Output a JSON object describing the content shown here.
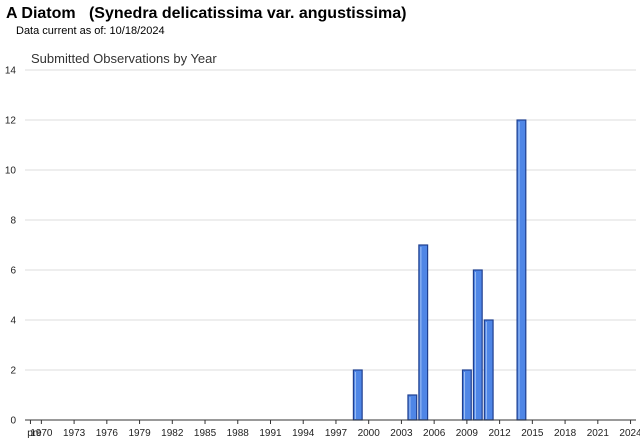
{
  "header": {
    "title": "A Diatom   (Synedra delicatissima var. angustissima)",
    "data_date": "Data current as of: 10/18/2024"
  },
  "colors": {
    "bar_fill": "#4f86e6",
    "bar_stroke": "#1f3f8f",
    "grid": "#dddddd",
    "axis": "#333333"
  },
  "chart_data": {
    "type": "bar",
    "title": "Submitted Observations by Year",
    "xlabel": "",
    "ylabel": "",
    "ylim": [
      0,
      14
    ],
    "yticks": [
      0,
      2,
      4,
      6,
      8,
      10,
      12,
      14
    ],
    "grid": true,
    "legend": "none",
    "x_tick_labels": [
      "pre",
      "1970",
      "1973",
      "1976",
      "1979",
      "1982",
      "1985",
      "1988",
      "1991",
      "1994",
      "1997",
      "2000",
      "2003",
      "2006",
      "2009",
      "2012",
      "2015",
      "2018",
      "2021",
      "2024"
    ],
    "categories": [
      "pre",
      "1970",
      "1971",
      "1972",
      "1973",
      "1974",
      "1975",
      "1976",
      "1977",
      "1978",
      "1979",
      "1980",
      "1981",
      "1982",
      "1983",
      "1984",
      "1985",
      "1986",
      "1987",
      "1988",
      "1989",
      "1990",
      "1991",
      "1992",
      "1993",
      "1994",
      "1995",
      "1996",
      "1997",
      "1998",
      "1999",
      "2000",
      "2001",
      "2002",
      "2003",
      "2004",
      "2005",
      "2006",
      "2007",
      "2008",
      "2009",
      "2010",
      "2011",
      "2012",
      "2013",
      "2014",
      "2015",
      "2016",
      "2017",
      "2018",
      "2019",
      "2020",
      "2021",
      "2022",
      "2023",
      "2024"
    ],
    "values": [
      0,
      0,
      0,
      0,
      0,
      0,
      0,
      0,
      0,
      0,
      0,
      0,
      0,
      0,
      0,
      0,
      0,
      0,
      0,
      0,
      0,
      0,
      0,
      0,
      0,
      0,
      0,
      0,
      0,
      0,
      2,
      0,
      0,
      0,
      0,
      1,
      7,
      0,
      0,
      0,
      2,
      6,
      4,
      0,
      0,
      12,
      0,
      0,
      0,
      0,
      0,
      0,
      0,
      0,
      0,
      0
    ]
  }
}
